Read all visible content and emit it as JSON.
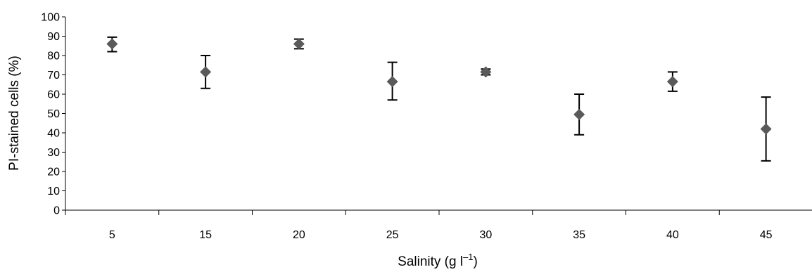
{
  "chart_data": {
    "type": "scatter",
    "categories": [
      "5",
      "15",
      "20",
      "25",
      "30",
      "35",
      "40",
      "45"
    ],
    "values": [
      86,
      71.5,
      86,
      66.5,
      71.5,
      49.5,
      66.5,
      42
    ],
    "error_upper": [
      89.5,
      80,
      88.5,
      76.5,
      73,
      60,
      71.5,
      58.5
    ],
    "error_lower": [
      82,
      63,
      83.5,
      57,
      70,
      39,
      61.5,
      25.5
    ],
    "xlabel": {
      "text": "Salinity (g l",
      "superscript": "–1",
      "suffix": ")"
    },
    "ylabel": "PI-stained cells (%)",
    "ylim": [
      0,
      100
    ],
    "yticks": [
      "0",
      "10",
      "20",
      "30",
      "40",
      "50",
      "60",
      "70",
      "80",
      "90",
      "100"
    ],
    "marker": "diamond",
    "marker_color": "#5a5a5a",
    "error_bar_color": "#000000",
    "grid": false,
    "legend": "none"
  }
}
